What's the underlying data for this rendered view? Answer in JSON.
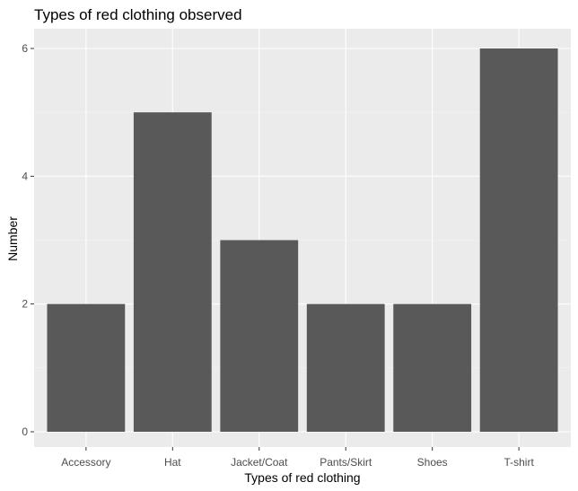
{
  "chart_data": {
    "type": "bar",
    "title": "Types of red clothing observed",
    "xlabel": "Types of red clothing",
    "ylabel": "Number",
    "categories": [
      "Accessory",
      "Hat",
      "Jacket/Coat",
      "Pants/Skirt",
      "Shoes",
      "T-shirt"
    ],
    "values": [
      2,
      5,
      3,
      2,
      2,
      6
    ],
    "ylim": [
      0,
      6.3
    ],
    "yticks": [
      0,
      2,
      4,
      6
    ],
    "grid": true,
    "legend": "none",
    "colors": {
      "bar": "#595959",
      "panel_background": "#ebebeb",
      "grid_major": "#ffffff",
      "grid_minor": "#f5f5f5",
      "tick_text": "#4d4d4d"
    }
  }
}
